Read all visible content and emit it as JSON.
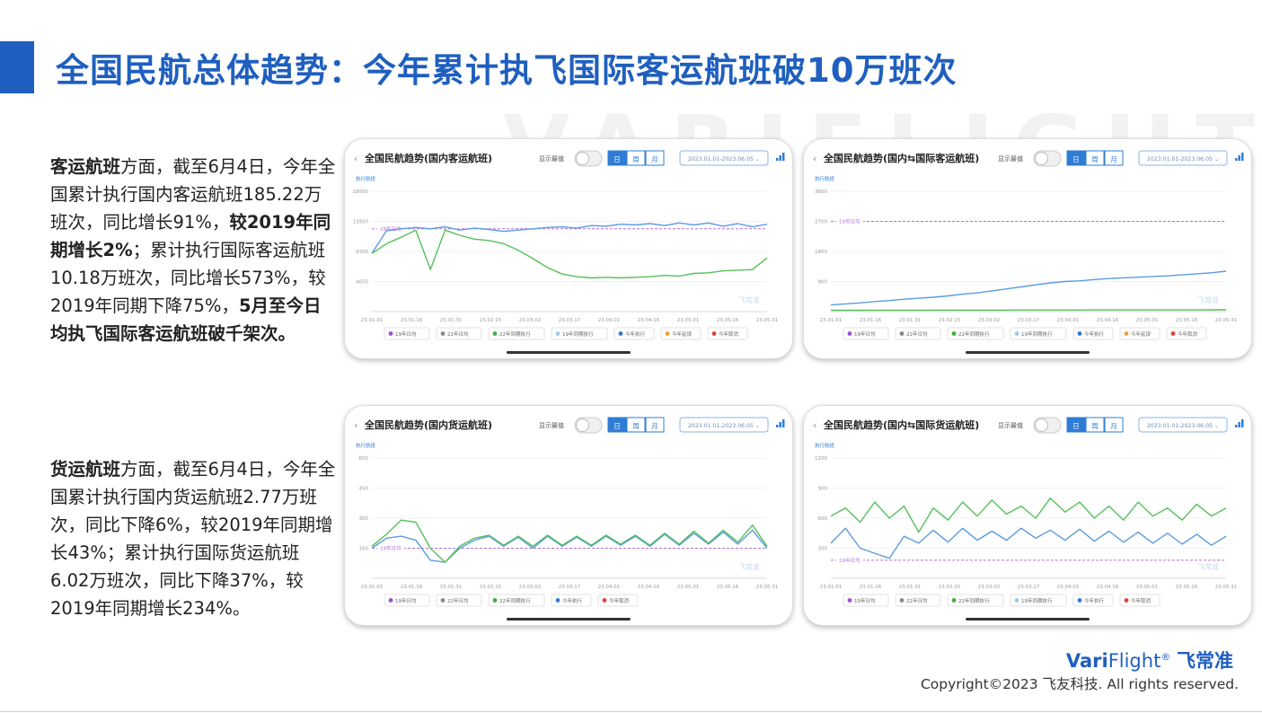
{
  "title": "全国民航总体趋势：今年累计执飞国际客运航班破10万班次",
  "watermark": "VARIFLIGHT",
  "text_passenger": {
    "lead": "客运航班",
    "part1": "方面，截至6月4日，今年全国累计执行国内客运航班185.22万班次，同比增长91%，",
    "bold1": "较2019年同期增长2%",
    "part2": "；累计执行国际客运航班10.18万班次，同比增长573%，较2019年同期下降75%，",
    "bold2": "5月至今日均执飞国际客运航班破千架次。"
  },
  "text_cargo": {
    "lead": "货运航班",
    "part1": "方面，截至6月4日，今年全国累计执行国内货运航班2.77万班次，同比下降6%，较2019年同期增长43%；累计执行国际货运航班6.02万班次，同比下降37%，较2019年同期增长234%。"
  },
  "footer": {
    "brand_a": "Vari",
    "brand_b": "Flight",
    "brand_mark": "®",
    "brand_cn": "飞常准",
    "copyright": "Copyright©2023 飞友科技. All rights reserved."
  },
  "colors": {
    "accent": "#1f5fbf",
    "blue_line": "#5b9be0",
    "green_line": "#55c15a",
    "ref_line": "#b66fd8"
  },
  "chart_controls": {
    "toggle_label": "显示最值",
    "day": "日",
    "week": "周",
    "month": "月",
    "date_range": "2023.01.01-2023.06.05 ⌄",
    "y_unit": "执行航班",
    "wm": "飞常准"
  },
  "legend_items": [
    {
      "label": "19年日均",
      "color": "#9b4fd6"
    },
    {
      "label": "22年日均",
      "color": "#888888"
    },
    {
      "label": "22年同期执行",
      "color": "#3fae3f"
    },
    {
      "label": "19年同期执行",
      "color": "#9ec8ee"
    },
    {
      "label": "今年执行",
      "color": "#2e7cd6"
    },
    {
      "label": "今年延误",
      "color": "#f0a030"
    },
    {
      "label": "今年取消",
      "color": "#e04040"
    }
  ],
  "chart_data": [
    {
      "type": "line",
      "title": "全国民航趋势(国内客运航班)",
      "x_ticks": [
        "23.01.01",
        "23.01.16",
        "23.01.31",
        "23.02.15",
        "23.03.02",
        "23.03.17",
        "23.04.01",
        "23.04.16",
        "23.05.01",
        "23.05.16",
        "23.05.31"
      ],
      "y_ticks": [
        "18600",
        "13950",
        "9300",
        "4650"
      ],
      "ylim": [
        0,
        18600
      ],
      "ref_label": "19年日均",
      "ref_value": 12800,
      "legend": [
        0,
        1,
        2,
        3,
        4,
        5,
        6
      ],
      "series": [
        {
          "color": "#5b9be0",
          "values": [
            9000,
            12500,
            12800,
            13000,
            12800,
            13100,
            12600,
            12900,
            12700,
            12400,
            12600,
            12800,
            13000,
            13100,
            12900,
            13300,
            13200,
            13500,
            13400,
            13600,
            13300,
            13700,
            13400,
            13700,
            13200,
            13600,
            13100,
            13500
          ]
        },
        {
          "color": "#55c15a",
          "values": [
            9000,
            10500,
            11500,
            12600,
            6500,
            12600,
            11800,
            11200,
            11000,
            10500,
            9500,
            8200,
            6800,
            5800,
            5400,
            5200,
            5300,
            5200,
            5300,
            5400,
            5600,
            5500,
            5900,
            6000,
            6300,
            6400,
            6500,
            8300
          ]
        }
      ]
    },
    {
      "type": "line",
      "title": "全国民航趋势(国内⇆国际客运航班)",
      "x_ticks": [
        "23.01.01",
        "23.01.16",
        "23.01.31",
        "23.02.15",
        "23.03.02",
        "23.03.17",
        "23.04.01",
        "23.04.16",
        "23.05.01",
        "23.05.16",
        "23.05.31"
      ],
      "y_ticks": [
        "3600",
        "2700",
        "1800",
        "900"
      ],
      "ylim": [
        0,
        3600
      ],
      "ref_label": "19年日均",
      "ref_value": 2700,
      "legend": [
        0,
        1,
        2,
        3,
        4,
        5,
        6
      ],
      "series": [
        {
          "color": "#5b9be0",
          "values": [
            200,
            230,
            260,
            300,
            330,
            370,
            400,
            430,
            470,
            520,
            560,
            620,
            680,
            740,
            800,
            860,
            900,
            920,
            960,
            990,
            1010,
            1030,
            1050,
            1070,
            1100,
            1130,
            1160,
            1210
          ]
        },
        {
          "color": "#55c15a",
          "values": [
            40,
            40,
            40,
            42,
            42,
            44,
            44,
            45,
            45,
            46,
            46,
            47,
            47,
            48,
            48,
            48,
            49,
            49,
            50,
            50,
            50,
            51,
            51,
            52,
            52,
            52,
            53,
            53
          ]
        }
      ]
    },
    {
      "type": "line",
      "title": "全国民航趋势(国内货运航班)",
      "x_ticks": [
        "23.01.01",
        "23.01.16",
        "23.01.31",
        "23.02.15",
        "23.03.02",
        "23.03.17",
        "23.04.01",
        "23.04.16",
        "23.05.01",
        "23.05.16",
        "23.05.31"
      ],
      "y_ticks": [
        "600",
        "450",
        "300",
        "150"
      ],
      "ylim": [
        0,
        600
      ],
      "ref_label": "19年日均",
      "ref_value": 150,
      "legend": [
        0,
        1,
        2,
        4,
        6
      ],
      "series": [
        {
          "color": "#5b9be0",
          "values": [
            150,
            200,
            210,
            190,
            90,
            80,
            150,
            190,
            210,
            160,
            205,
            150,
            210,
            160,
            205,
            160,
            210,
            165,
            210,
            160,
            220,
            165,
            225,
            170,
            230,
            170,
            240,
            150
          ]
        },
        {
          "color": "#55c15a",
          "values": [
            160,
            220,
            290,
            280,
            150,
            80,
            160,
            200,
            215,
            165,
            210,
            160,
            215,
            165,
            210,
            165,
            215,
            170,
            215,
            165,
            225,
            170,
            235,
            175,
            240,
            180,
            265,
            160
          ]
        }
      ]
    },
    {
      "type": "line",
      "title": "全国民航趋势(国内⇆国际货运航班)",
      "x_ticks": [
        "23.01.01",
        "23.01.16",
        "23.01.31",
        "23.02.15",
        "23.03.02",
        "23.03.17",
        "23.04.01",
        "23.04.16",
        "23.05.01",
        "23.05.16",
        "23.05.31"
      ],
      "y_ticks": [
        "1200",
        "900",
        "600",
        "300"
      ],
      "ylim": [
        0,
        1200
      ],
      "ref_label": "19年日均",
      "ref_value": 180,
      "legend": [
        0,
        1,
        2,
        3,
        4,
        6
      ],
      "series": [
        {
          "color": "#5b9be0",
          "values": [
            350,
            500,
            300,
            250,
            200,
            420,
            350,
            480,
            360,
            500,
            380,
            470,
            380,
            500,
            400,
            480,
            380,
            490,
            370,
            470,
            360,
            460,
            350,
            450,
            340,
            440,
            330,
            420
          ]
        },
        {
          "color": "#55c15a",
          "values": [
            620,
            700,
            560,
            760,
            600,
            720,
            460,
            700,
            580,
            760,
            620,
            780,
            640,
            720,
            600,
            800,
            660,
            760,
            600,
            720,
            580,
            760,
            620,
            700,
            580,
            740,
            620,
            700
          ]
        }
      ]
    }
  ]
}
